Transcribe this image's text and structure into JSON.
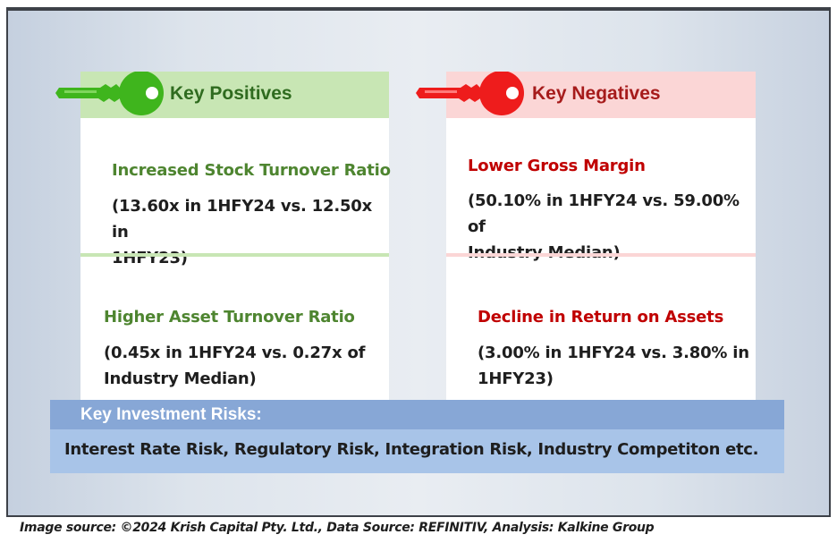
{
  "positives": {
    "title": "Key Positives",
    "icon": "green-key-icon",
    "color": "#4e8530",
    "items": [
      {
        "title": "Increased Stock Turnover Ratio",
        "detail_line1": "(13.60x in 1HFY24 vs. 12.50x in",
        "detail_line2": "1HFY23)"
      },
      {
        "title": "Higher Asset Turnover Ratio",
        "detail_line1": "(0.45x in 1HFY24 vs. 0.27x of",
        "detail_line2": "Industry Median)"
      }
    ]
  },
  "negatives": {
    "title": "Key Negatives",
    "icon": "red-key-icon",
    "color": "#c00000",
    "items": [
      {
        "title": "Lower Gross Margin",
        "detail_line1": "(50.10% in 1HFY24 vs. 59.00% of",
        "detail_line2": "Industry Median)"
      },
      {
        "title": "Decline in Return on Assets",
        "detail_line1": "(3.00% in 1HFY24 vs. 3.80% in",
        "detail_line2": "1HFY23)"
      }
    ]
  },
  "risks": {
    "title": "Key Investment Risks:",
    "text": "Interest Rate Risk, Regulatory Risk, Integration Risk, Industry Competiton etc."
  },
  "footer": "Image source: ©2024 Krish Capital Pty. Ltd., Data Source: REFINITIV, Analysis: Kalkine Group"
}
